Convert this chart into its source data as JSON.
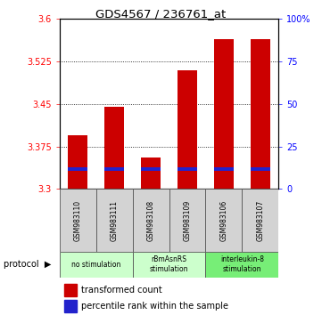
{
  "title": "GDS4567 / 236761_at",
  "samples": [
    "GSM983110",
    "GSM983111",
    "GSM983108",
    "GSM983109",
    "GSM983106",
    "GSM983107"
  ],
  "transformed_counts": [
    3.395,
    3.445,
    3.355,
    3.51,
    3.565,
    3.565
  ],
  "percentile_values": [
    3.335,
    3.335,
    3.335,
    3.335,
    3.335,
    3.335
  ],
  "bar_bottom": 3.3,
  "ylim_left": [
    3.3,
    3.6
  ],
  "ylim_right": [
    0,
    100
  ],
  "yticks_left": [
    3.3,
    3.375,
    3.45,
    3.525,
    3.6
  ],
  "yticks_right": [
    0,
    25,
    50,
    75,
    100
  ],
  "ytick_labels_left": [
    "3.3",
    "3.375",
    "3.45",
    "3.525",
    "3.6"
  ],
  "ytick_labels_right": [
    "0",
    "25",
    "50",
    "75",
    "100%"
  ],
  "groups": [
    {
      "label": "no stimulation",
      "start": 0,
      "end": 2,
      "color": "#ccffcc"
    },
    {
      "label": "rBmAsnRS\nstimulation",
      "start": 2,
      "end": 4,
      "color": "#ccffcc"
    },
    {
      "label": "interleukin-8\nstimulation",
      "start": 4,
      "end": 6,
      "color": "#77ee77"
    }
  ],
  "bar_color_red": "#cc0000",
  "bar_color_blue": "#2222cc",
  "bar_width": 0.55,
  "percentile_bar_height": 0.006,
  "legend_red_label": "transformed count",
  "legend_blue_label": "percentile rank within the sample"
}
